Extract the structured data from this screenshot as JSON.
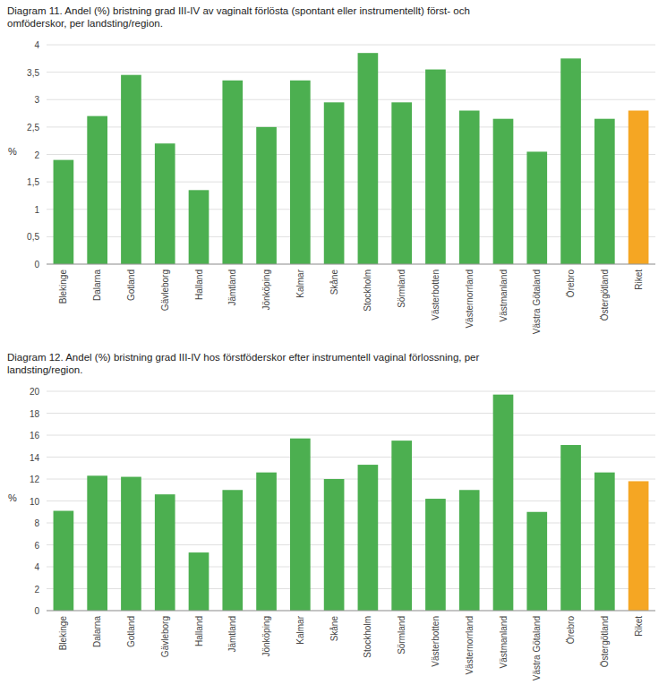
{
  "chart_data": [
    {
      "type": "bar",
      "title": "Diagram 11. Andel (%) bristning grad III-IV av vaginalt förlösta (spontant eller instrumentellt) först- och\nomföderskor, per landsting/region.",
      "categories": [
        "Blekinge",
        "Dalarna",
        "Gotland",
        "Gävleborg",
        "Halland",
        "Jämtland",
        "Jönköping",
        "Kalmar",
        "Skåne",
        "Stockholm",
        "Sörmland",
        "Västerbotten",
        "Västernorrland",
        "Västmanland",
        "Västra Götaland",
        "Örebro",
        "Östergötland",
        "Riket"
      ],
      "values": [
        1.9,
        2.7,
        3.45,
        2.2,
        1.35,
        3.35,
        2.5,
        3.35,
        2.95,
        3.85,
        2.95,
        3.55,
        2.8,
        2.65,
        2.05,
        3.75,
        2.65,
        2.8
      ],
      "colors": [
        "#4caf50",
        "#4caf50",
        "#4caf50",
        "#4caf50",
        "#4caf50",
        "#4caf50",
        "#4caf50",
        "#4caf50",
        "#4caf50",
        "#4caf50",
        "#4caf50",
        "#4caf50",
        "#4caf50",
        "#4caf50",
        "#4caf50",
        "#4caf50",
        "#4caf50",
        "#f5a623"
      ],
      "ylabel": "%",
      "ylim": [
        0,
        4
      ],
      "yticks": [
        0,
        {
          "value": 0.5,
          "label": "0,5"
        },
        1,
        {
          "value": 1.5,
          "label": "1,5"
        },
        2,
        {
          "value": 2.5,
          "label": "2,5"
        },
        3,
        {
          "value": 3.5,
          "label": "3,5"
        },
        4
      ],
      "grid": true
    },
    {
      "type": "bar",
      "title": "Diagram 12. Andel (%) bristning grad III-IV hos förstföderskor efter instrumentell vaginal förlossning, per\nlandsting/region.",
      "categories": [
        "Blekinge",
        "Dalarna",
        "Gotland",
        "Gävleborg",
        "Halland",
        "Jämtland",
        "Jönköping",
        "Kalmar",
        "Skåne",
        "Stockholm",
        "Sörmland",
        "Västerbotten",
        "Västernorrland",
        "Västmanland",
        "Västra Götaland",
        "Örebro",
        "Östergötland",
        "Riket"
      ],
      "values": [
        9.1,
        12.3,
        12.2,
        10.6,
        5.3,
        11.0,
        12.6,
        15.7,
        12.0,
        13.3,
        15.5,
        10.2,
        11.0,
        19.7,
        9.0,
        15.1,
        12.6,
        11.8
      ],
      "colors": [
        "#4caf50",
        "#4caf50",
        "#4caf50",
        "#4caf50",
        "#4caf50",
        "#4caf50",
        "#4caf50",
        "#4caf50",
        "#4caf50",
        "#4caf50",
        "#4caf50",
        "#4caf50",
        "#4caf50",
        "#4caf50",
        "#4caf50",
        "#4caf50",
        "#4caf50",
        "#f5a623"
      ],
      "ylabel": "%",
      "ylim": [
        0,
        20
      ],
      "yticks": [
        0,
        2,
        4,
        6,
        8,
        10,
        12,
        14,
        16,
        18,
        20
      ],
      "grid": true
    }
  ]
}
